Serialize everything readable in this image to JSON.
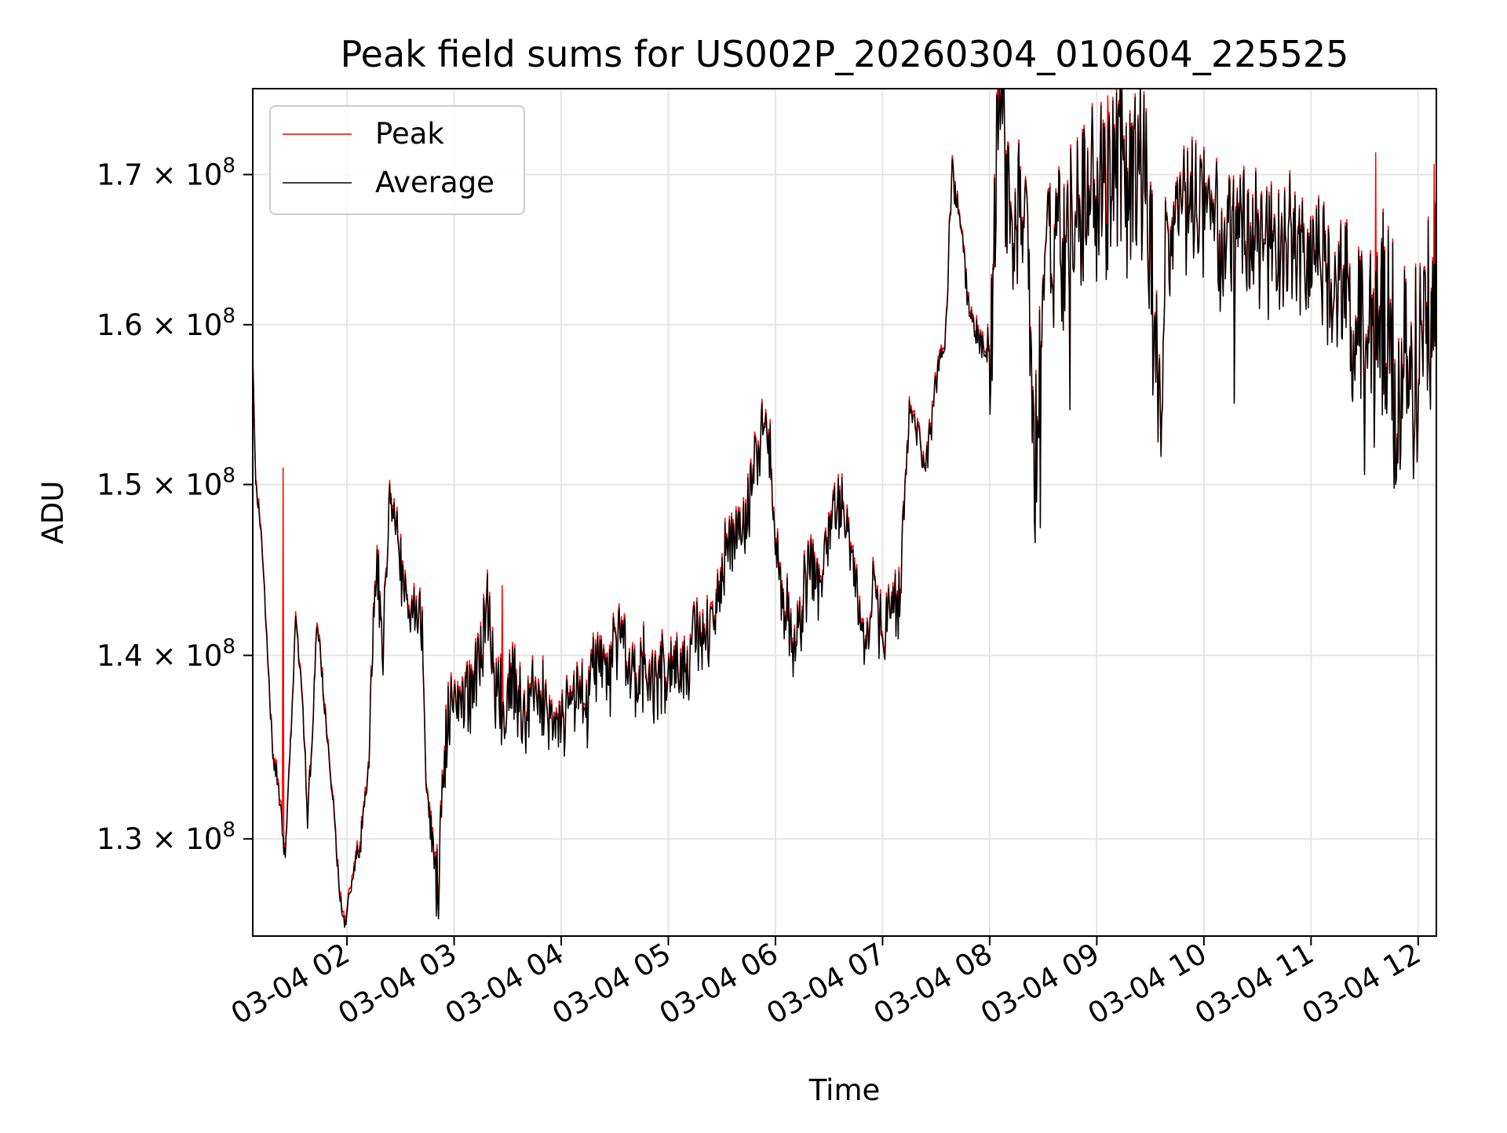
{
  "chart_data": {
    "type": "line",
    "title": "Peak field sums for US002P_20260304_010604_225525",
    "xlabel": "Time",
    "ylabel": "ADU",
    "x_unit": "hours since 03-04 00:00",
    "xlim": [
      1.12,
      12.17
    ],
    "ylim": [
      125000000.0,
      176000000.0
    ],
    "yscale": "log",
    "grid": true,
    "legend_position": "top-left",
    "x_ticks": [
      {
        "value": 2,
        "label": "03-04 02"
      },
      {
        "value": 3,
        "label": "03-04 03"
      },
      {
        "value": 4,
        "label": "03-04 04"
      },
      {
        "value": 5,
        "label": "03-04 05"
      },
      {
        "value": 6,
        "label": "03-04 06"
      },
      {
        "value": 7,
        "label": "03-04 07"
      },
      {
        "value": 8,
        "label": "03-04 08"
      },
      {
        "value": 9,
        "label": "03-04 09"
      },
      {
        "value": 10,
        "label": "03-04 10"
      },
      {
        "value": 11,
        "label": "03-04 11"
      },
      {
        "value": 12,
        "label": "03-04 12"
      }
    ],
    "y_ticks": [
      {
        "value": 130000000.0,
        "label": "1.3 × 10",
        "exponent": "8"
      },
      {
        "value": 140000000.0,
        "label": "1.4 × 10",
        "exponent": "8"
      },
      {
        "value": 150000000.0,
        "label": "1.5 × 10",
        "exponent": "8"
      },
      {
        "value": 160000000.0,
        "label": "1.6 × 10",
        "exponent": "8"
      },
      {
        "value": 170000000.0,
        "label": "1.7 × 10",
        "exponent": "8"
      }
    ],
    "series": [
      {
        "name": "Peak",
        "color": "#ff0000",
        "offset": 250000.0,
        "spikes": [
          [
            3.45,
            144000000.0
          ],
          [
            8.08,
            176000000.0
          ],
          [
            9.1,
            175500000.0
          ],
          [
            11.6,
            171500000.0
          ],
          [
            12.15,
            170700000.0
          ],
          [
            1.4,
            151000000.0
          ],
          [
            5.95,
            154000000.0
          ]
        ]
      },
      {
        "name": "Average",
        "color": "#000000",
        "offset": 0,
        "spikes": []
      }
    ],
    "base_points": [
      [
        1.12,
        158000000.0
      ],
      [
        1.15,
        150000000.0
      ],
      [
        1.2,
        147000000.0
      ],
      [
        1.25,
        141000000.0
      ],
      [
        1.3,
        135000000.0
      ],
      [
        1.35,
        133000000.0
      ],
      [
        1.42,
        129000000.0
      ],
      [
        1.48,
        136000000.0
      ],
      [
        1.52,
        142000000.0
      ],
      [
        1.58,
        138000000.0
      ],
      [
        1.63,
        131000000.0
      ],
      [
        1.68,
        136000000.0
      ],
      [
        1.72,
        142000000.0
      ],
      [
        1.8,
        136500000.0
      ],
      [
        1.88,
        131000000.0
      ],
      [
        1.93,
        127000000.0
      ],
      [
        1.98,
        125500000.0
      ],
      [
        2.05,
        128000000.0
      ],
      [
        2.12,
        129500000.0
      ],
      [
        2.2,
        134000000.0
      ],
      [
        2.28,
        146000000.0
      ],
      [
        2.33,
        140000000.0
      ],
      [
        2.4,
        150000000.0
      ],
      [
        2.5,
        145000000.0
      ],
      [
        2.6,
        143000000.0
      ],
      [
        2.7,
        142000000.0
      ],
      [
        2.75,
        132000000.0
      ],
      [
        2.8,
        130000000.0
      ],
      [
        2.85,
        127000000.0
      ],
      [
        2.9,
        133000000.0
      ],
      [
        2.95,
        137000000.0
      ],
      [
        3.05,
        138000000.0
      ],
      [
        3.15,
        137500000.0
      ],
      [
        3.25,
        140000000.0
      ],
      [
        3.32,
        143000000.0
      ],
      [
        3.38,
        138500000.0
      ],
      [
        3.45,
        137000000.0
      ],
      [
        3.55,
        138500000.0
      ],
      [
        3.65,
        137000000.0
      ],
      [
        3.75,
        138500000.0
      ],
      [
        3.85,
        137200000.0
      ],
      [
        3.95,
        136000000.0
      ],
      [
        4.05,
        137000000.0
      ],
      [
        4.15,
        138000000.0
      ],
      [
        4.25,
        137500000.0
      ],
      [
        4.35,
        139500000.0
      ],
      [
        4.45,
        139000000.0
      ],
      [
        4.55,
        140500000.0
      ],
      [
        4.65,
        139000000.0
      ],
      [
        4.75,
        139500000.0
      ],
      [
        4.85,
        138500000.0
      ],
      [
        4.95,
        139000000.0
      ],
      [
        5.05,
        138500000.0
      ],
      [
        5.15,
        140000000.0
      ],
      [
        5.25,
        141000000.0
      ],
      [
        5.35,
        140500000.0
      ],
      [
        5.45,
        143000000.0
      ],
      [
        5.55,
        146000000.0
      ],
      [
        5.65,
        147000000.0
      ],
      [
        5.75,
        148500000.0
      ],
      [
        5.85,
        152000000.0
      ],
      [
        5.92,
        153500000.0
      ],
      [
        5.97,
        150500000.0
      ],
      [
        6.02,
        145000000.0
      ],
      [
        6.1,
        142500000.0
      ],
      [
        6.18,
        140000000.0
      ],
      [
        6.25,
        143000000.0
      ],
      [
        6.32,
        145000000.0
      ],
      [
        6.4,
        143500000.0
      ],
      [
        6.48,
        146000000.0
      ],
      [
        6.55,
        149000000.0
      ],
      [
        6.62,
        149000000.0
      ],
      [
        6.7,
        146000000.0
      ],
      [
        6.78,
        142500000.0
      ],
      [
        6.85,
        141000000.0
      ],
      [
        6.92,
        144500000.0
      ],
      [
        7.0,
        140000000.0
      ],
      [
        7.08,
        144000000.0
      ],
      [
        7.15,
        142500000.0
      ],
      [
        7.2,
        148000000.0
      ],
      [
        7.25,
        155000000.0
      ],
      [
        7.32,
        153500000.0
      ],
      [
        7.38,
        151000000.0
      ],
      [
        7.45,
        153000000.0
      ],
      [
        7.52,
        158000000.0
      ],
      [
        7.58,
        158500000.0
      ],
      [
        7.65,
        170000000.0
      ],
      [
        7.72,
        167500000.0
      ],
      [
        7.8,
        161500000.0
      ],
      [
        7.85,
        160000000.0
      ],
      [
        7.9,
        159000000.0
      ],
      [
        7.95,
        158500000.0
      ],
      [
        8.02,
        159000000.0
      ],
      [
        8.08,
        172000000.0
      ],
      [
        8.12,
        173500000.0
      ],
      [
        8.18,
        168000000.0
      ],
      [
        8.25,
        168000000.0
      ],
      [
        8.32,
        166500000.0
      ],
      [
        8.38,
        160000000.0
      ],
      [
        8.42,
        150000000.0
      ],
      [
        8.48,
        160000000.0
      ],
      [
        8.55,
        166000000.0
      ],
      [
        8.62,
        166000000.0
      ],
      [
        8.7,
        165000000.0
      ],
      [
        8.78,
        167000000.0
      ],
      [
        8.85,
        166500000.0
      ],
      [
        8.92,
        168000000.0
      ],
      [
        9.0,
        169000000.0
      ],
      [
        9.08,
        168500000.0
      ],
      [
        9.15,
        170000000.0
      ],
      [
        9.22,
        170000000.0
      ],
      [
        9.3,
        170000000.0
      ],
      [
        9.38,
        170500000.0
      ],
      [
        9.45,
        169000000.0
      ],
      [
        9.5,
        165000000.0
      ],
      [
        9.55,
        157000000.0
      ],
      [
        9.6,
        154500000.0
      ],
      [
        9.65,
        165000000.0
      ],
      [
        9.72,
        167000000.0
      ],
      [
        9.8,
        168000000.0
      ],
      [
        9.9,
        168500000.0
      ],
      [
        10.0,
        167000000.0
      ],
      [
        10.1,
        166000000.0
      ],
      [
        10.2,
        165000000.0
      ],
      [
        10.3,
        166500000.0
      ],
      [
        10.4,
        165500000.0
      ],
      [
        10.5,
        165500000.0
      ],
      [
        10.6,
        164000000.0
      ],
      [
        10.7,
        165000000.0
      ],
      [
        10.8,
        165000000.0
      ],
      [
        10.9,
        164500000.0
      ],
      [
        11.0,
        164500000.0
      ],
      [
        11.1,
        163500000.0
      ],
      [
        11.2,
        162500000.0
      ],
      [
        11.3,
        162500000.0
      ],
      [
        11.4,
        161000000.0
      ],
      [
        11.5,
        159500000.0
      ],
      [
        11.6,
        160000000.0
      ],
      [
        11.7,
        158500000.0
      ],
      [
        11.8,
        156500000.0
      ],
      [
        11.9,
        155000000.0
      ],
      [
        12.0,
        157500000.0
      ],
      [
        12.05,
        160000000.0
      ],
      [
        12.1,
        163000000.0
      ],
      [
        12.17,
        168000000.0
      ]
    ],
    "noise_bands": [
      [
        1.12,
        2.2,
        0.004
      ],
      [
        2.2,
        3.2,
        0.012
      ],
      [
        3.2,
        5.4,
        0.014
      ],
      [
        5.4,
        7.2,
        0.012
      ],
      [
        7.2,
        8.0,
        0.006
      ],
      [
        8.0,
        9.6,
        0.03
      ],
      [
        9.6,
        11.3,
        0.022
      ],
      [
        11.3,
        12.17,
        0.042
      ]
    ],
    "dips": [
      [
        8.47,
        147400000.0
      ],
      [
        8.42,
        147800000.0
      ],
      [
        9.57,
        152600000.0
      ],
      [
        10.28,
        155000000.0
      ],
      [
        11.5,
        150600000.0
      ],
      [
        11.79,
        150000000.0
      ],
      [
        8.75,
        154600000.0
      ]
    ]
  }
}
